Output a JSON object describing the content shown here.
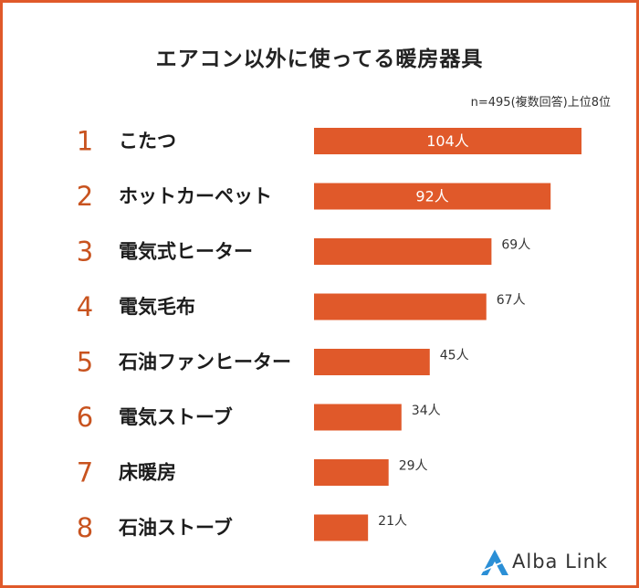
{
  "title": "エアコン以外に使ってる暖房器具",
  "note": "n=495(複数回答)上位8位",
  "colors": {
    "accent": "#E0592A",
    "rank": "#C8531F",
    "border": "#E0592A"
  },
  "logo": {
    "text": "Alba Link",
    "icon": "alba-link-logo-icon"
  },
  "chart_data": {
    "type": "bar",
    "orientation": "horizontal",
    "title": "エアコン以外に使ってる暖房器具",
    "ranks": [
      "1",
      "2",
      "3",
      "4",
      "5",
      "6",
      "7",
      "8"
    ],
    "categories": [
      "こたつ",
      "ホットカーペット",
      "電気式ヒーター",
      "電気毛布",
      "石油ファンヒーター",
      "電気ストーブ",
      "床暖房",
      "石油ストーブ"
    ],
    "values": [
      104,
      92,
      69,
      67,
      45,
      34,
      29,
      21
    ],
    "labels": [
      "104人",
      "92人",
      "69人",
      "67人",
      "45人",
      "34人",
      "29人",
      "21人"
    ],
    "xlabel": "",
    "ylabel": "",
    "xlim": [
      0,
      104
    ],
    "grid": false
  }
}
